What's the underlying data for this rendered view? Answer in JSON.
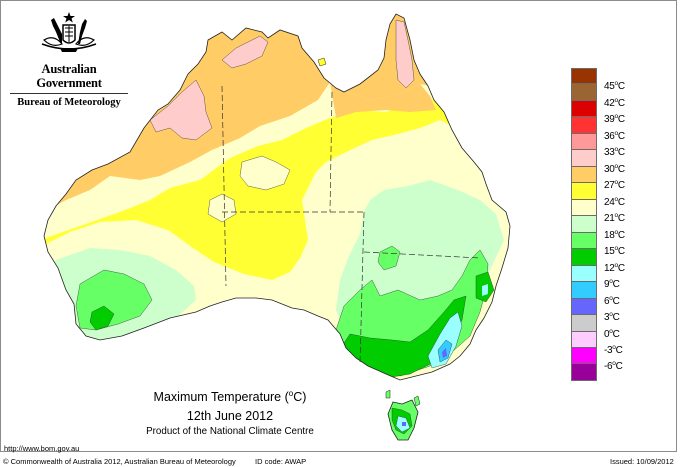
{
  "header": {
    "logo": "commonwealth-coat-of-arms",
    "government_label": "Australian Government",
    "agency_label": "Bureau of Meteorology"
  },
  "title": {
    "line1": "Maximum Temperature (",
    "degree": "o",
    "line1_suffix": "C)",
    "date": "12th June 2012",
    "product": "Product of the National Climate Centre"
  },
  "footer": {
    "url": "http://www.bom.gov.au",
    "copyright": "© Commonwealth of Australia 2012, Australian Bureau of Meteorology",
    "id_code": "ID code: AWAP",
    "issued": "Issued: 10/09/2012"
  },
  "legend": {
    "unit": "°C",
    "boxes": [
      {
        "color": "#993300"
      },
      {
        "color": "#996633"
      },
      {
        "color": "#dd0000"
      },
      {
        "color": "#ff3333"
      },
      {
        "color": "#ff9999"
      },
      {
        "color": "#ffcccc"
      },
      {
        "color": "#ffcc66"
      },
      {
        "color": "#ffff33"
      },
      {
        "color": "#ffffcc"
      },
      {
        "color": "#ccffcc"
      },
      {
        "color": "#66ff66"
      },
      {
        "color": "#00cc00"
      },
      {
        "color": "#99ffff"
      },
      {
        "color": "#33ccff"
      },
      {
        "color": "#6666ff"
      },
      {
        "color": "#cccccc"
      },
      {
        "color": "#ffccff"
      },
      {
        "color": "#ff00ff"
      },
      {
        "color": "#990099"
      }
    ],
    "labels": [
      "45",
      "42",
      "39",
      "36",
      "33",
      "30",
      "27",
      "24",
      "21",
      "18",
      "15",
      "12",
      "9",
      "6",
      "3",
      "0",
      "-3",
      "-6"
    ]
  },
  "map": {
    "region": "Australia",
    "variable": "Maximum Temperature",
    "zones": [
      {
        "name": "tropical-north-pink",
        "range": "30-33 °C",
        "color": "#ffcccc"
      },
      {
        "name": "north-orange",
        "range": "27-30 °C",
        "color": "#ffcc66"
      },
      {
        "name": "central-yellow",
        "range": "24-27 °C",
        "color": "#ffff33"
      },
      {
        "name": "interior-cream",
        "range": "21-24 °C",
        "color": "#ffffcc"
      },
      {
        "name": "south-pale-green",
        "range": "18-21 °C",
        "color": "#ccffcc"
      },
      {
        "name": "southwest-green",
        "range": "15-18 °C",
        "color": "#66ff66"
      },
      {
        "name": "southeast-dark-green",
        "range": "12-15 °C",
        "color": "#00cc00"
      },
      {
        "name": "alpine-cyan",
        "range": "9-12 °C",
        "color": "#99ffff"
      },
      {
        "name": "alpine-blue",
        "range": "6-9 °C",
        "color": "#33ccff"
      },
      {
        "name": "alpine-peak",
        "range": "3-6 °C",
        "color": "#6666ff"
      }
    ]
  }
}
